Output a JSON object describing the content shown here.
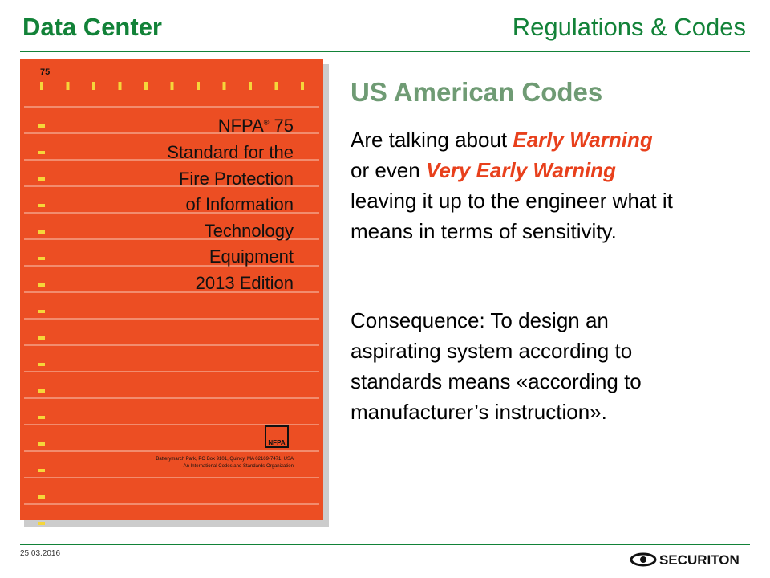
{
  "header": {
    "left": "Data Center",
    "right": "Regulations & Codes"
  },
  "cover": {
    "number": "75",
    "brand": "NFPA",
    "reg": "®",
    "brand_number": " 75",
    "title_lines": [
      "Standard for the",
      "Fire Protection",
      "of Information",
      "Technology",
      "Equipment",
      "2013 Edition"
    ],
    "logo": "NFPA",
    "address_lines": [
      "Batterymarch Park, PO Box 9101, Quincy, MA 02169-7471, USA",
      "An International Codes and Standards Organization"
    ]
  },
  "content": {
    "heading": "US American Codes",
    "paragraph1": [
      [
        "Are talking about ",
        "Early Warning"
      ],
      [
        "or even ",
        "Very Early Warning"
      ],
      [
        "leaving it up to the engineer what it"
      ],
      [
        "means in terms of sensitivity."
      ]
    ],
    "paragraph2": [
      "Consequence: To design an",
      "aspirating system according to",
      "standards means «according to",
      "manufacturer’s instruction»."
    ]
  },
  "footer": {
    "date": "25.03.2016",
    "logo": "SECURITON"
  }
}
